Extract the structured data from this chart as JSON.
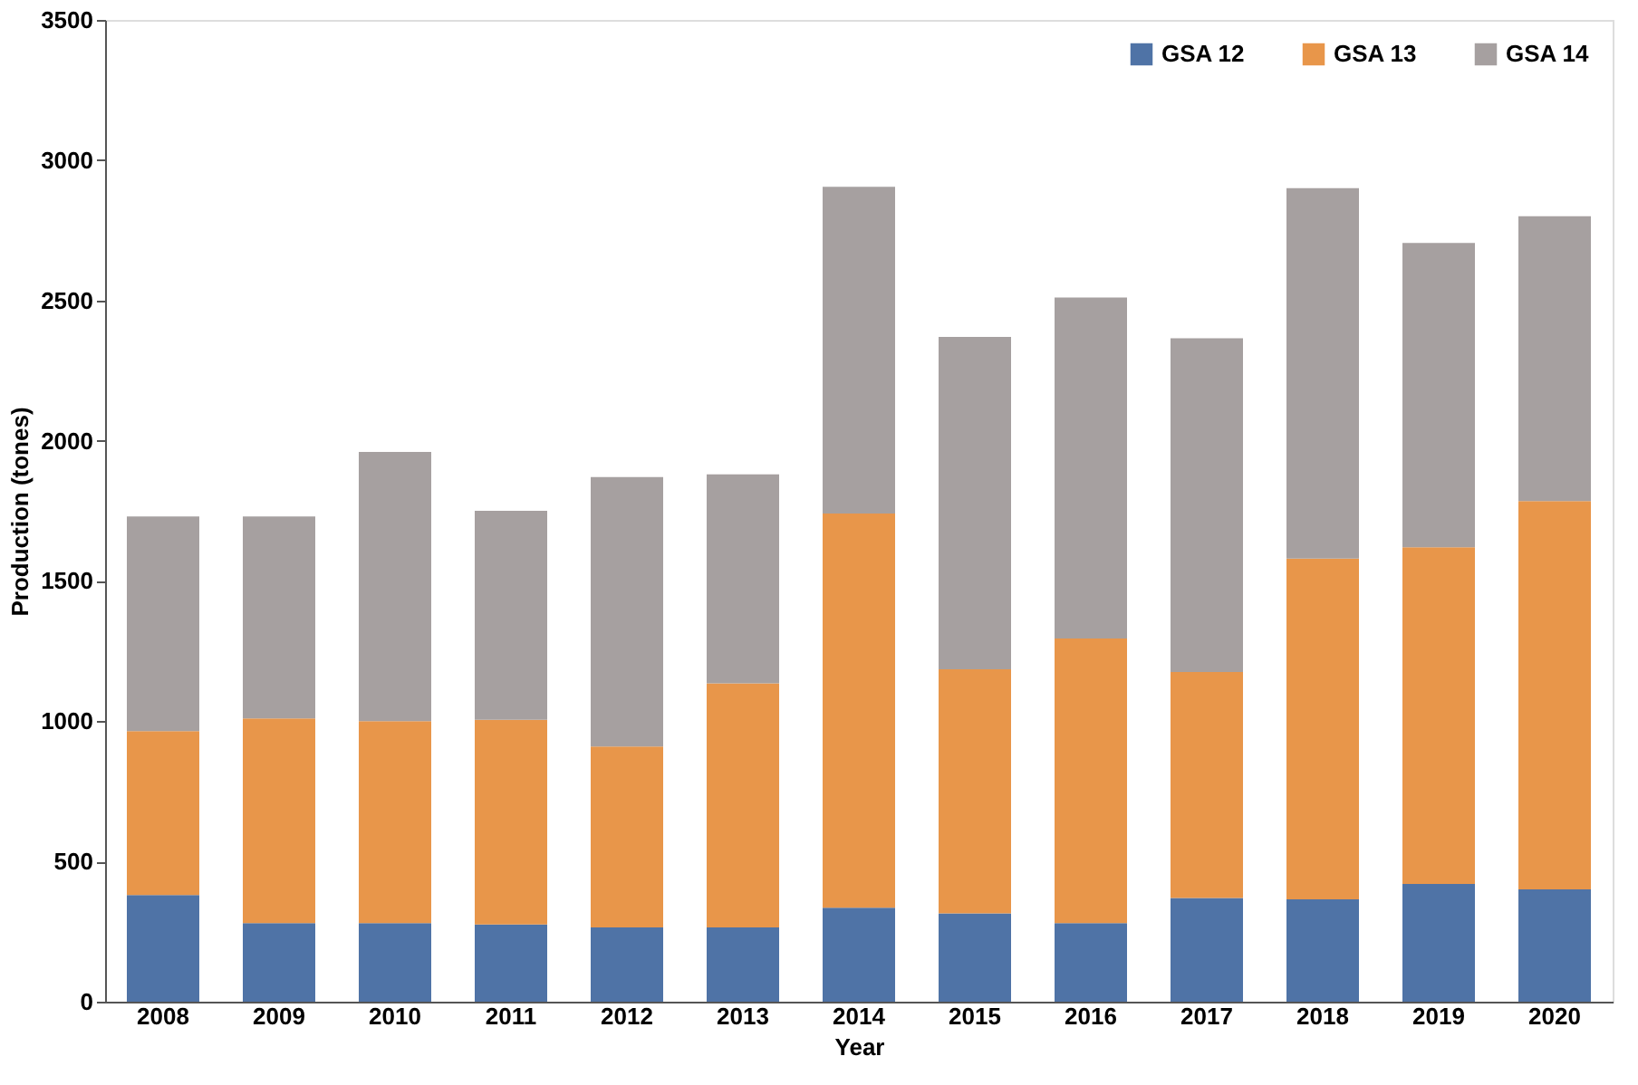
{
  "chart_data": {
    "type": "bar",
    "stacked": true,
    "xlabel": "Year",
    "ylabel": "Production (tones)",
    "categories": [
      "2008",
      "2009",
      "2010",
      "2011",
      "2012",
      "2013",
      "2014",
      "2015",
      "2016",
      "2017",
      "2018",
      "2019",
      "2020"
    ],
    "series": [
      {
        "name": "GSA 12",
        "color": "#4f73a6",
        "values": [
          380,
          280,
          280,
          275,
          265,
          265,
          335,
          315,
          280,
          370,
          365,
          420,
          400
        ]
      },
      {
        "name": "GSA 13",
        "color": "#e8964a",
        "values": [
          585,
          730,
          720,
          730,
          645,
          870,
          1405,
          870,
          1015,
          805,
          1215,
          1200,
          1385
        ]
      },
      {
        "name": "GSA 14",
        "color": "#a6a0a0",
        "values": [
          765,
          720,
          960,
          745,
          960,
          745,
          1165,
          1185,
          1215,
          1190,
          1320,
          1085,
          1015
        ]
      }
    ],
    "ylim": [
      0,
      3500
    ],
    "yticks": [
      0,
      500,
      1000,
      1500,
      2000,
      2500,
      3000,
      3500
    ],
    "grid": false,
    "legend": "top right"
  }
}
